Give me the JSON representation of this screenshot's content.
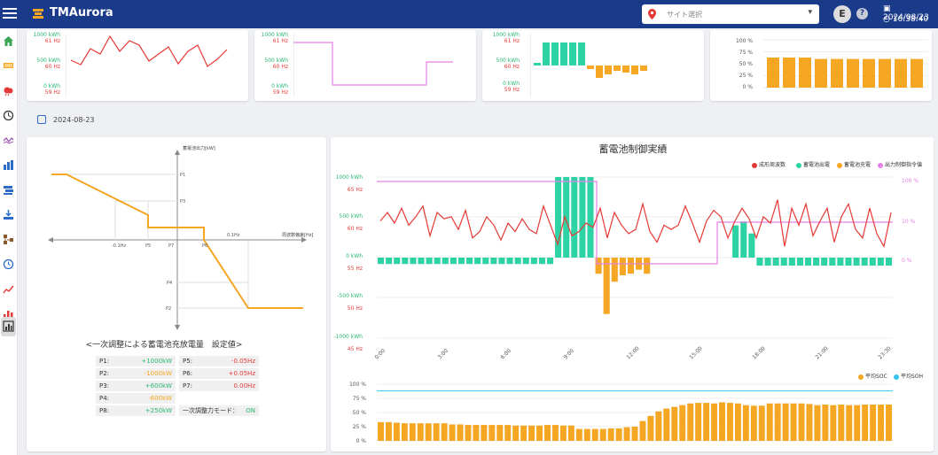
{
  "header": {
    "app_title": "TMAurora",
    "site_select_placeholder": "サイト選択",
    "user_initial": "E",
    "help_label": "?",
    "date": "2024/08/23",
    "time": "16:38:40"
  },
  "sidebar": {
    "items": [
      "home-icon",
      "battery-icon",
      "weather-icon",
      "clock-icon",
      "wave-icon",
      "bar-chart-icon",
      "layers-icon",
      "download-icon",
      "network-icon",
      "history-icon",
      "trend-icon",
      "column-chart-icon",
      "report-icon"
    ],
    "active_index": 12
  },
  "mini_cards": [
    {
      "name": "freq-mini",
      "ticks": [
        {
          "top": "1000 kWh",
          "bottom": "61 Hz"
        },
        {
          "top": "500 kWh",
          "bottom": "60 Hz"
        },
        {
          "top": "0 kWh",
          "bottom": "59 Hz"
        }
      ],
      "tick_colors": [
        "#2bb673",
        "#e53935"
      ]
    },
    {
      "name": "output-mini",
      "ticks": [
        {
          "top": "1000 kWh",
          "bottom": "61 Hz"
        },
        {
          "top": "500 kWh",
          "bottom": "60 Hz"
        },
        {
          "top": "0 kWh",
          "bottom": "59 Hz"
        }
      ],
      "tick_colors": [
        "#2bb673",
        "#e53935"
      ]
    },
    {
      "name": "charge-mini",
      "ticks": [
        {
          "top": "1000 kWh",
          "bottom": "61 Hz"
        },
        {
          "top": "500 kWh",
          "bottom": "60 Hz"
        },
        {
          "top": "0 kWh",
          "bottom": "59 Hz"
        }
      ],
      "tick_colors": [
        "#2bb673",
        "#e53935"
      ]
    },
    {
      "name": "soc-mini",
      "ticks": [
        {
          "top": "100 %"
        },
        {
          "top": "75 %"
        },
        {
          "top": "50 %"
        },
        {
          "top": "25 %"
        },
        {
          "top": "0 %"
        }
      ],
      "tick_colors": [
        "#555",
        "#555"
      ]
    }
  ],
  "date_label": "2024-08-23",
  "droop_chart": {
    "y_axis_label": "蓄電池出力[kW]",
    "x_axis_label": "周波数偏差[Hz]",
    "labels": {
      "p1": "P1",
      "p3": "P3",
      "p5": "P5",
      "p7": "P7",
      "p6": "P6",
      "p4": "P4",
      "p2": "P2",
      "neg": "-0.1Hz",
      "pos": "0.1Hz"
    },
    "line_color": "#f5a623"
  },
  "params": {
    "title": "<一次調整による蓄電池充放電量　設定値>",
    "rows": [
      [
        {
          "k": "P1:",
          "v": "+1000kW",
          "c": "#2bb673"
        },
        {
          "k": "P5:",
          "v": "-0.05Hz",
          "c": "#e53935"
        }
      ],
      [
        {
          "k": "P2:",
          "v": "-1000kW",
          "c": "#f5a623"
        },
        {
          "k": "P6:",
          "v": "+0.05Hz",
          "c": "#e53935"
        }
      ],
      [
        {
          "k": "P3:",
          "v": "+600kW",
          "c": "#2bb673"
        },
        {
          "k": "P7:",
          "v": "0.00Hz",
          "c": "#e53935"
        }
      ],
      [
        {
          "k": "P4:",
          "v": "-600kW",
          "c": "#f5a623"
        }
      ],
      [
        {
          "k": "P8:",
          "v": "+250kW",
          "c": "#2bb673"
        },
        {
          "k": "一次調整力モード：",
          "v": "ON",
          "c": "#2bb673"
        }
      ]
    ]
  },
  "main_chart": {
    "title": "蓄電池制御実績",
    "legend": [
      {
        "label": "成形周波数",
        "color": "#e53935"
      },
      {
        "label": "蓄電池出電",
        "color": "#2ed3a5"
      },
      {
        "label": "蓄電池充電",
        "color": "#f5a623"
      },
      {
        "label": "出力制御指令値",
        "color": "#e580e8"
      }
    ],
    "y_left_top": [
      "1000 kWh",
      "500 kWh",
      "0 kWh",
      "-500 kWh",
      "-1000 kWh"
    ],
    "y_left_bottom": [
      "65 Hz",
      "60 Hz",
      "55 Hz",
      "50 Hz",
      "45 Hz"
    ],
    "y_right": [
      "100 %",
      "10 %",
      "0 %"
    ],
    "x_ticks": [
      "0:00",
      "3:00",
      "6:00",
      "9:00",
      "12:00",
      "15:00",
      "18:00",
      "21:00",
      "23:30"
    ]
  },
  "chart_data": [
    {
      "type": "line",
      "title": "蓄電池制御実績",
      "series_freq": [
        56,
        60,
        55,
        62,
        54,
        58,
        63,
        49,
        60,
        57,
        58,
        52,
        61,
        48,
        51,
        58,
        54,
        47,
        55,
        51,
        57,
        52,
        50,
        63,
        54,
        45,
        58,
        49,
        51,
        55,
        53,
        62,
        48,
        60,
        54,
        50,
        52,
        64,
        51,
        46,
        54,
        52,
        54,
        63,
        55,
        46,
        56,
        61,
        58,
        48,
        56,
        62,
        57,
        48,
        58,
        55,
        66,
        44,
        62,
        54,
        64,
        49,
        56,
        62,
        46,
        58,
        64,
        52,
        48,
        62,
        50,
        44,
        60
      ],
      "ymin": 45,
      "ymax": 70
    },
    {
      "type": "bar",
      "series": [
        {
          "name": "蓄電池出電",
          "values": [
            25,
            25,
            25,
            25,
            25,
            25,
            25,
            25,
            25,
            25,
            25,
            25,
            25,
            25,
            25,
            25,
            25,
            25,
            25,
            25,
            25,
            25,
            25,
            25,
            25,
            25,
            25,
            25,
            25,
            25,
            25,
            25,
            25,
            25,
            25,
            25,
            25,
            25,
            25,
            25,
            25,
            25,
            25,
            25,
            25,
            25,
            25,
            25
          ]
        },
        {
          "name": "蓄電池充電",
          "values": [
            0,
            0,
            0,
            0,
            0,
            0,
            0,
            0,
            0,
            0,
            0,
            0,
            0,
            0,
            0,
            0,
            0,
            0,
            0,
            0,
            0,
            0,
            0,
            0,
            0,
            0,
            0,
            0,
            0,
            0,
            0,
            0,
            0,
            0,
            0,
            0,
            0,
            0,
            0,
            0,
            0,
            0,
            0,
            0,
            0,
            0,
            0,
            0
          ]
        }
      ],
      "bar_values": [
        -80,
        -80,
        -80,
        -80,
        -80,
        -80,
        -80,
        -80,
        -80,
        -80,
        -80,
        -80,
        -80,
        -80,
        -80,
        -80,
        -80,
        -80,
        -80,
        -80,
        -80,
        -80,
        1000,
        1000,
        1000,
        1000,
        1000,
        -200,
        -700,
        -300,
        -220,
        -200,
        -150,
        -200,
        0,
        0,
        0,
        0,
        0,
        0,
        0,
        0,
        0,
        0,
        400,
        450,
        300,
        -100,
        -100,
        -100,
        -100,
        -100,
        -100,
        -100,
        -100,
        -100,
        -100,
        -100,
        -100,
        -100,
        -100,
        -100,
        -100,
        -100
      ]
    },
    {
      "type": "line",
      "series": [
        {
          "name": "出力制御指令値",
          "values": [
            100,
            100,
            100,
            100,
            100,
            0,
            0,
            0,
            10,
            10
          ]
        }
      ]
    },
    {
      "type": "bar",
      "series": [
        {
          "name": "平均SOC",
          "values": [
            33,
            33,
            32,
            31,
            31,
            31,
            31,
            31,
            31,
            29,
            29,
            28,
            28,
            28,
            28,
            28,
            28,
            27,
            27,
            27,
            27,
            28,
            28,
            27,
            27,
            21,
            21,
            21,
            21,
            22,
            22,
            24,
            25,
            35,
            44,
            52,
            57,
            60,
            63,
            66,
            67,
            67,
            66,
            68,
            67,
            66,
            63,
            62,
            62,
            66,
            66,
            66,
            66,
            66,
            65,
            63,
            64,
            63,
            64,
            63,
            63,
            64,
            64,
            64,
            64
          ]
        },
        {
          "name": "平均SOH",
          "values": [
            88
          ]
        }
      ],
      "ylim": [
        0,
        100
      ]
    }
  ],
  "mini_data": {
    "freq_line": [
      45,
      40,
      58,
      52,
      72,
      55,
      67,
      62,
      44,
      52,
      60,
      41,
      55,
      62,
      38,
      46,
      57
    ],
    "output_line": "step",
    "charge_bars": [
      3,
      26,
      26,
      26,
      26,
      26,
      -4,
      -14,
      -10,
      -6,
      -8,
      -10,
      -6
    ]
  }
}
